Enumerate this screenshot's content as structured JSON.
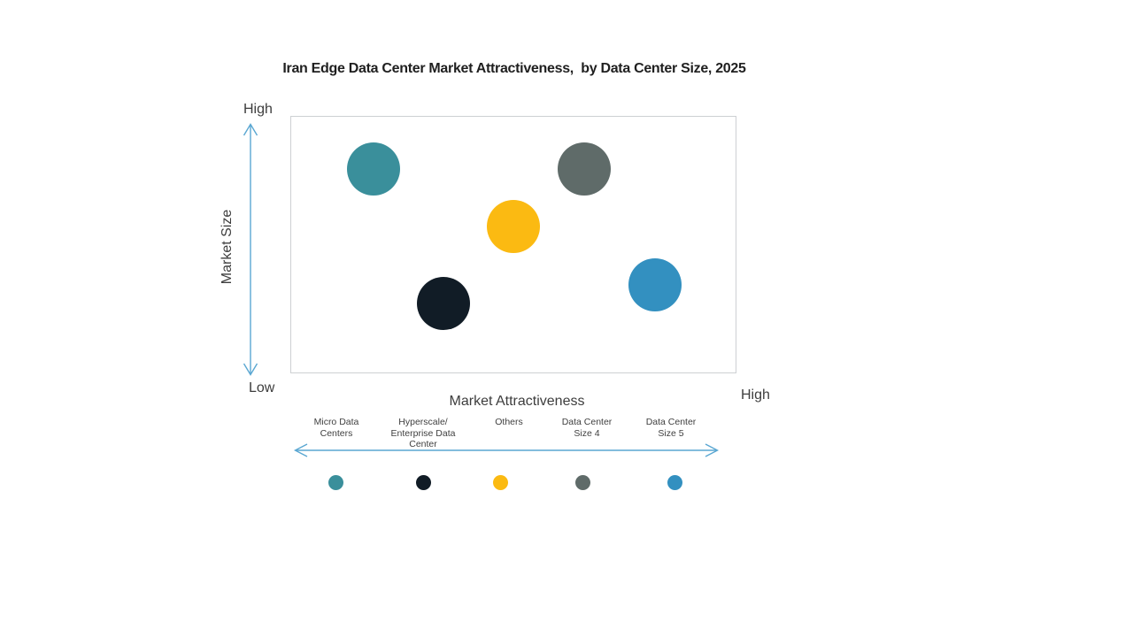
{
  "chart_data": {
    "type": "bubble",
    "title": "Iran Edge Data Center Market Attractiveness,  by Data Center Size, 2025",
    "xlabel": "Market Attractiveness",
    "ylabel": "Market Size",
    "x_axis_end_label": "High",
    "y_axis_top_label": "High",
    "y_axis_bottom_label": "Low",
    "axes": "qualitative Low-to-High; x and y are fractional positions (0 = Low, 1 = High) read from the plot; r is bubble radius in px",
    "grid": false,
    "legend_position": "bottom",
    "series": [
      {
        "name": "Micro Data Centers",
        "color": "#3a8f9b",
        "x": 0.185,
        "y": 0.797,
        "r": 30
      },
      {
        "name": "Hyperscale/ Enterprise Data Center",
        "color": "#111c26",
        "x": 0.341,
        "y": 0.275,
        "r": 30
      },
      {
        "name": "Others",
        "color": "#fbba12",
        "x": 0.498,
        "y": 0.574,
        "r": 30
      },
      {
        "name": "Data Center Size 4",
        "color": "#5f6b69",
        "x": 0.657,
        "y": 0.797,
        "r": 30
      },
      {
        "name": "Data Center Size 5",
        "color": "#3390c0",
        "x": 0.815,
        "y": 0.347,
        "r": 30
      }
    ]
  },
  "legend": {
    "items": [
      {
        "label": "Micro Data\nCenters",
        "color": "#3a8f9b"
      },
      {
        "label": "Hyperscale/\nEnterprise Data\nCenter",
        "color": "#111c26"
      },
      {
        "label": "Others",
        "color": "#fbba12"
      },
      {
        "label": "Data Center\nSize 4",
        "color": "#5f6b69"
      },
      {
        "label": "Data Center\nSize 5",
        "color": "#3390c0"
      }
    ]
  },
  "arrows": {
    "color": "#5aa7d2"
  }
}
